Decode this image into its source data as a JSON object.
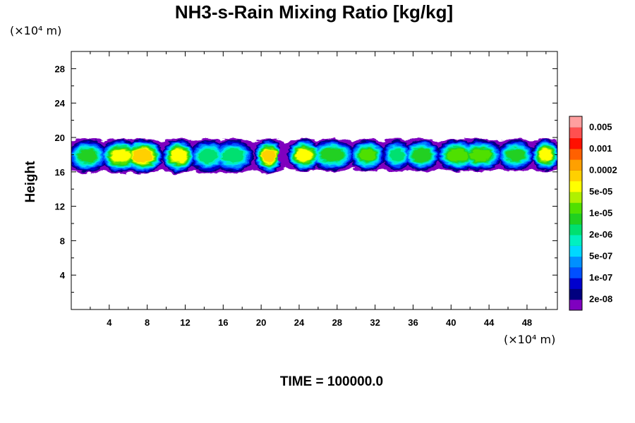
{
  "chart_data": {
    "type": "heatmap",
    "title": "NH3-s-Rain Mixing Ratio [kg/kg]",
    "ylabel": "Height",
    "xunit": "(×10⁴ m)",
    "yunit": "(×10⁴ m)",
    "time_label": "TIME = 100000.0",
    "xlim": [
      0,
      51.2
    ],
    "ylim": [
      0,
      30
    ],
    "xticks": [
      "4",
      "8",
      "12",
      "16",
      "20",
      "24",
      "28",
      "32",
      "36",
      "40",
      "44",
      "48"
    ],
    "yticks": [
      "4",
      "8",
      "12",
      "16",
      "20",
      "24",
      "28"
    ],
    "colorbar": {
      "colors": [
        "#7f00bf",
        "#00007f",
        "#0000cd",
        "#0050ff",
        "#0090ff",
        "#00d8ff",
        "#00f0c0",
        "#00e070",
        "#20d020",
        "#50e000",
        "#b0f000",
        "#ffff00",
        "#ffd000",
        "#ffa000",
        "#ff6000",
        "#ff1000",
        "#ff5050",
        "#ff9f9f"
      ],
      "labels": [
        "2e-08",
        "1e-07",
        "5e-07",
        "2e-06",
        "1e-05",
        "5e-05",
        "0.0002",
        "0.001",
        "0.005"
      ]
    },
    "cloud_bands": [
      {
        "x": [
          0,
          22.0
        ],
        "y": [
          16.3,
          20.0
        ],
        "peak": "7e-04"
      },
      {
        "x": [
          23.0,
          51.2
        ],
        "y": [
          16.5,
          20.0
        ],
        "peak": "7e-04"
      }
    ]
  }
}
